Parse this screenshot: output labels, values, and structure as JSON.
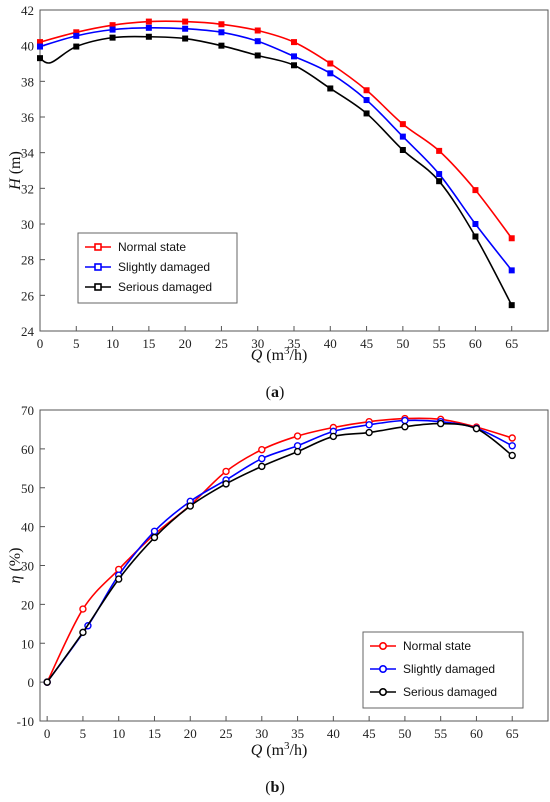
{
  "chart_data": [
    {
      "type": "line",
      "panel_label": "(a)",
      "xlabel": "Q (m3/h)",
      "xlabel_parts": {
        "var": "Q",
        "unit_pre": " (m",
        "unit_sup": "3",
        "unit_post": "/h)"
      },
      "ylabel": "H (m)",
      "ylabel_parts": {
        "var": "H",
        "unit": " (m)"
      },
      "xlim": [
        0,
        70
      ],
      "ylim": [
        24,
        42
      ],
      "xticks": [
        0,
        5,
        10,
        15,
        20,
        25,
        30,
        35,
        40,
        45,
        50,
        55,
        60,
        65
      ],
      "yticks": [
        24,
        26,
        28,
        30,
        32,
        34,
        36,
        38,
        40,
        42
      ],
      "grid": false,
      "legend_position": "bottom-left",
      "marker": "square",
      "series": [
        {
          "name": "Normal state",
          "color": "#ff0000",
          "x": [
            0,
            5,
            10,
            15,
            20,
            25,
            30,
            35,
            40,
            45,
            50,
            55,
            60,
            65
          ],
          "y": [
            40.2,
            40.75,
            41.15,
            41.35,
            41.35,
            41.2,
            40.85,
            40.2,
            39.0,
            37.5,
            35.6,
            34.1,
            31.9,
            29.2
          ]
        },
        {
          "name": "Slightly damaged",
          "color": "#0000ff",
          "x": [
            0,
            5,
            10,
            15,
            20,
            25,
            30,
            35,
            40,
            45,
            50,
            55,
            60,
            65
          ],
          "y": [
            39.95,
            40.55,
            40.9,
            41.0,
            40.95,
            40.75,
            40.25,
            39.4,
            38.45,
            36.95,
            34.9,
            32.8,
            30.0,
            27.4
          ]
        },
        {
          "name": "Serious damaged",
          "color": "#000000",
          "x": [
            0,
            1.5,
            5,
            10,
            15,
            20,
            25,
            30,
            35,
            40,
            45,
            50,
            55,
            60,
            65
          ],
          "y": [
            39.3,
            39.05,
            39.95,
            40.45,
            40.5,
            40.4,
            40.0,
            39.45,
            38.9,
            37.6,
            36.2,
            34.15,
            32.4,
            29.3,
            25.45
          ],
          "markers": [
            0,
            5,
            10,
            15,
            20,
            25,
            30,
            35,
            40,
            45,
            50,
            55,
            60,
            65
          ]
        }
      ]
    },
    {
      "type": "line",
      "panel_label": "(b)",
      "xlabel": "Q (m3/h)",
      "xlabel_parts": {
        "var": "Q",
        "unit_pre": " (m",
        "unit_sup": "3",
        "unit_post": "/h)"
      },
      "ylabel": "η (%)",
      "ylabel_parts": {
        "var": "η",
        "unit": " (%)"
      },
      "xlim": [
        -1,
        70
      ],
      "ylim": [
        -10,
        70
      ],
      "xticks": [
        0,
        5,
        10,
        15,
        20,
        25,
        30,
        35,
        40,
        45,
        50,
        55,
        60,
        65
      ],
      "yticks": [
        -10,
        0,
        10,
        20,
        30,
        40,
        50,
        60,
        70
      ],
      "grid": false,
      "legend_position": "bottom-right",
      "marker": "circle",
      "series": [
        {
          "name": "Normal state",
          "color": "#ff0000",
          "x": [
            0,
            5,
            10,
            15,
            20,
            25,
            30,
            35,
            40,
            45,
            50,
            55,
            60,
            65
          ],
          "y": [
            0,
            18.8,
            29.0,
            38.0,
            45.5,
            54.2,
            59.8,
            63.3,
            65.5,
            67.0,
            67.8,
            67.6,
            65.6,
            62.8
          ]
        },
        {
          "name": "Slightly damaged",
          "color": "#0000ff",
          "x": [
            0,
            5.7,
            10,
            15,
            20,
            25,
            30,
            35,
            40,
            45,
            50,
            55,
            60,
            65
          ],
          "y": [
            0,
            14.5,
            27.5,
            38.8,
            46.5,
            52.0,
            57.5,
            60.8,
            64.5,
            66.2,
            67.3,
            67.0,
            65.3,
            60.8
          ]
        },
        {
          "name": "Serious damaged",
          "color": "#000000",
          "x": [
            0,
            5,
            10,
            15,
            20,
            25,
            30,
            35,
            40,
            45,
            50,
            55,
            60,
            65
          ],
          "y": [
            0,
            12.8,
            26.5,
            37.2,
            45.3,
            51.0,
            55.5,
            59.3,
            63.2,
            64.2,
            65.7,
            66.5,
            65.2,
            58.3
          ]
        }
      ]
    }
  ]
}
